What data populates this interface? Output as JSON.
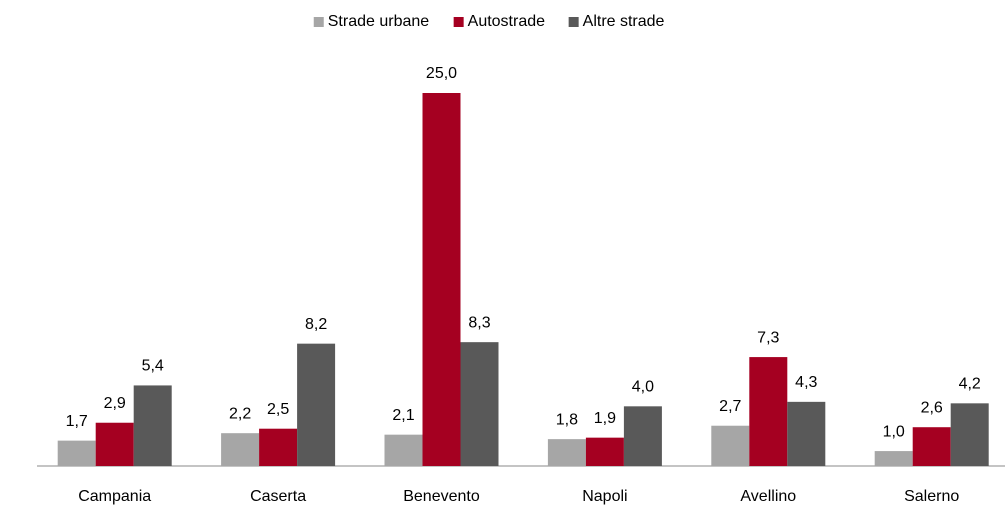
{
  "chart_data": {
    "type": "bar",
    "categories": [
      "Campania",
      "Caserta",
      "Benevento",
      "Napoli",
      "Avellino",
      "Salerno"
    ],
    "series": [
      {
        "name": "Strade urbane",
        "color": "#a6a6a6",
        "values": [
          1.7,
          2.2,
          2.1,
          1.8,
          2.7,
          1.0
        ],
        "value_labels": [
          "1,7",
          "2,2",
          "2,1",
          "1,8",
          "2,7",
          "1,0"
        ]
      },
      {
        "name": "Autostrade",
        "color": "#a50021",
        "values": [
          2.9,
          2.5,
          25.0,
          1.9,
          7.3,
          2.6
        ],
        "value_labels": [
          "2,9",
          "2,5",
          "25,0",
          "1,9",
          "7,3",
          "2,6"
        ]
      },
      {
        "name": "Altre strade",
        "color": "#595959",
        "values": [
          5.4,
          8.2,
          8.3,
          4.0,
          4.3,
          4.2
        ],
        "value_labels": [
          "5,4",
          "8,2",
          "8,3",
          "4,0",
          "4,3",
          "4,2"
        ]
      }
    ],
    "ylim": [
      0,
      25
    ],
    "legend": "top"
  }
}
